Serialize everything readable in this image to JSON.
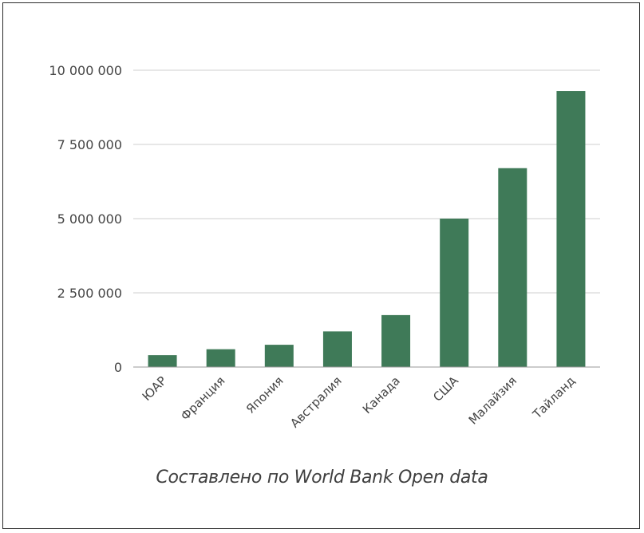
{
  "chart_data": {
    "type": "bar",
    "categories": [
      "ЮАР",
      "Франция",
      "Япония",
      "Австралия",
      "Канада",
      "США",
      "Малайзия",
      "Тайланд"
    ],
    "values": [
      400000,
      600000,
      750000,
      1200000,
      1750000,
      5000000,
      6700000,
      9300000
    ],
    "yticks": [
      0,
      2500000,
      5000000,
      7500000,
      10000000
    ],
    "ytick_labels": [
      "0",
      "2 500 000",
      "5 000 000",
      "7 500 000",
      "10 000 000"
    ],
    "ylim": [
      0,
      10000000
    ],
    "bar_color": "#3f7a58",
    "grid": true,
    "title": "",
    "xlabel": "",
    "ylabel": ""
  },
  "source_note": "Составлено по World Bank Open data"
}
